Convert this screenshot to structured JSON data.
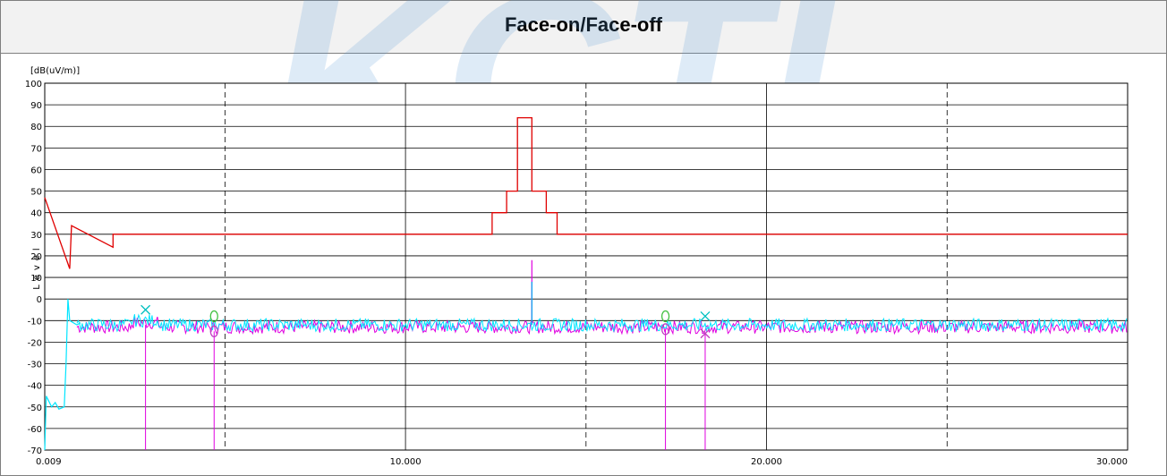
{
  "page": {
    "title": "Face-on/Face-off"
  },
  "watermark": {
    "text": "KCTL",
    "color": "#5b9bd5"
  },
  "chart_data": {
    "type": "line",
    "title": "Face-on/Face-off",
    "ylabel": "Level",
    "yunit": "[dB(uV/m)]",
    "xlim": [
      0.009,
      30.0
    ],
    "ylim": [
      -70,
      100
    ],
    "grid": true,
    "x_ticks": [
      "0.009",
      "10.000",
      "20.000",
      "30.000"
    ],
    "y_ticks": [
      "100",
      "90",
      "80",
      "70",
      "60",
      "50",
      "40",
      "30",
      "20",
      "10",
      "0",
      "-10",
      "-20",
      "-30",
      "-40",
      "-50",
      "-60",
      "-70"
    ],
    "dashed_x_gridlines": [
      5,
      15,
      25
    ],
    "series": [
      {
        "color": "#e00000",
        "x": [
          0.009,
          0.7,
          0.75,
          1.9,
          1.9,
          3.0,
          12.4,
          12.4,
          12.8,
          12.8,
          13.1,
          13.1,
          13.5,
          13.5,
          13.5,
          13.5,
          13.9,
          13.9,
          14.2,
          14.2,
          20.0,
          30.0
        ],
        "y": [
          47,
          14,
          34,
          24,
          30,
          30,
          30,
          40,
          40,
          50,
          50,
          84,
          84,
          50,
          50,
          50,
          50,
          40,
          40,
          30,
          30,
          30
        ]
      }
    ],
    "noise_series": [
      {
        "color": "#e000e0",
        "baseline": -13,
        "noise_amplitude": 3
      },
      {
        "color": "#00e5ff",
        "baseline": -12,
        "noise_amplitude": 3
      }
    ],
    "low_frequency_segment": {
      "color": "#00e5ff",
      "x": [
        0.009,
        0.05,
        0.2,
        0.3,
        0.4,
        0.55,
        0.6,
        0.65,
        0.7,
        0.8,
        0.9,
        1.0
      ],
      "y": [
        -70,
        -45,
        -50,
        -48,
        -51,
        -50,
        -30,
        0,
        -10,
        -11,
        -12,
        -11
      ]
    },
    "spike_series": [
      {
        "color": "#e000e0",
        "x": 13.5,
        "y_top": 18,
        "y_bottom": -12
      },
      {
        "color": "#00b0f0",
        "x": 13.5,
        "y_top": 8,
        "y_bottom": -12
      }
    ],
    "markers": [
      {
        "symbol": "x",
        "color": "#00c0c0",
        "x": 2.8,
        "y": -5
      },
      {
        "symbol": "o",
        "color": "#40c040",
        "x": 4.7,
        "y": -8
      },
      {
        "symbol": "o",
        "color": "#c040c0",
        "x": 4.7,
        "y": -15
      },
      {
        "symbol": "o",
        "color": "#40c040",
        "x": 17.2,
        "y": -8
      },
      {
        "symbol": "o",
        "color": "#c040c0",
        "x": 17.2,
        "y": -14
      },
      {
        "symbol": "x",
        "color": "#00c0c0",
        "x": 18.3,
        "y": -8
      },
      {
        "symbol": "x",
        "color": "#c040c0",
        "x": 18.3,
        "y": -16
      }
    ],
    "marker_droplines": [
      {
        "color": "#e000e0",
        "x": 2.8,
        "y_top": -12
      },
      {
        "color": "#e000e0",
        "x": 4.7,
        "y_top": -15
      },
      {
        "color": "#e000e0",
        "x": 17.2,
        "y_top": -14
      },
      {
        "color": "#e000e0",
        "x": 18.3,
        "y_top": -16
      }
    ]
  }
}
